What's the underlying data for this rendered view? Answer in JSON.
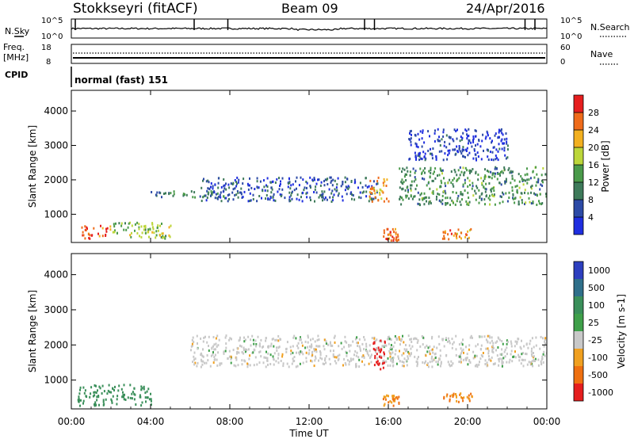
{
  "header": {
    "station": "Stokkseyri (fitACF)",
    "beam": "Beam 09",
    "date": "24/Apr/2016"
  },
  "noise_panel": {
    "left_label": "N.Sky",
    "right_label": "N.Search",
    "left_ticks": [
      "10^5",
      "10^0"
    ],
    "right_ticks": [
      "10^5",
      "10^0"
    ]
  },
  "freq_panel": {
    "left_label_line1": "Freq.",
    "left_label_line2": "[MHz]",
    "right_label": "Nave",
    "left_ticks": [
      "18",
      "8"
    ],
    "right_ticks": [
      "60",
      "0"
    ]
  },
  "cpid_panel": {
    "label": "CPID",
    "mode": "normal (fast) 151"
  },
  "colors": {
    "power": [
      "#1f2ee0",
      "#2c4aa6",
      "#3e7a5a",
      "#4a9a4a",
      "#bcd63a",
      "#f2b020",
      "#ef6b1a",
      "#e61e1e"
    ],
    "velocity": [
      "#2d3fbf",
      "#2f6f8a",
      "#3a8f5a",
      "#3fa04a",
      "#c8c8c8",
      "#f0a020",
      "#ef7010",
      "#e51e1e"
    ]
  },
  "chart_data": [
    {
      "type": "heatmap",
      "quantity": "Power",
      "xlabel": "",
      "ylabel": "Slant Range [km]",
      "x_ticks": [
        "00:00",
        "04:00",
        "08:00",
        "12:00",
        "16:00",
        "20:00",
        "00:00"
      ],
      "y_ticks": [
        "1000",
        "2000",
        "3000",
        "4000"
      ],
      "colorbar_label": "Power [dB]",
      "colorbar_ticks": [
        "4",
        "8",
        "12",
        "16",
        "20",
        "24",
        "28"
      ],
      "xlim_hours": [
        0,
        24
      ],
      "ylim_km": [
        180,
        4600
      ],
      "features": [
        {
          "name": "near-range echoes",
          "t": [
            0.5,
            2.0
          ],
          "range_km": [
            300,
            700
          ],
          "power_db": 28
        },
        {
          "name": "near-range echoes",
          "t": [
            2.0,
            5.0
          ],
          "range_km": [
            300,
            800
          ],
          "power_db": 18
        },
        {
          "name": "band",
          "t": [
            4.0,
            8.0
          ],
          "range_km": [
            1500,
            1700
          ],
          "power_db": 12
        },
        {
          "name": "band",
          "t": [
            6.5,
            15.5
          ],
          "range_km": [
            1400,
            2100
          ],
          "power_db": 8
        },
        {
          "name": "patch",
          "t": [
            15.0,
            16.0
          ],
          "range_km": [
            1400,
            2100
          ],
          "power_db": 24
        },
        {
          "name": "patch",
          "t": [
            15.7,
            16.5
          ],
          "range_km": [
            250,
            600
          ],
          "power_db": 28
        },
        {
          "name": "band",
          "t": [
            16.5,
            24.0
          ],
          "range_km": [
            1300,
            2400
          ],
          "power_db": 14
        },
        {
          "name": "patch",
          "t": [
            18.7,
            20.2
          ],
          "range_km": [
            300,
            600
          ],
          "power_db": 26
        },
        {
          "name": "arc",
          "t": [
            17.0,
            22.0
          ],
          "range_km": [
            2600,
            3500
          ],
          "power_db": 6
        }
      ]
    },
    {
      "type": "heatmap",
      "quantity": "Velocity",
      "xlabel": "Time UT",
      "ylabel": "Slant Range [km]",
      "x_ticks": [
        "00:00",
        "04:00",
        "08:00",
        "12:00",
        "16:00",
        "20:00",
        "00:00"
      ],
      "y_ticks": [
        "1000",
        "2000",
        "3000",
        "4000"
      ],
      "colorbar_label": "Velocity [m s-1]",
      "colorbar_ticks": [
        "1000",
        "500",
        "100",
        "25",
        "-25",
        "-100",
        "-500",
        "-1000"
      ],
      "xlim_hours": [
        0,
        24
      ],
      "ylim_km": [
        180,
        4600
      ],
      "features": [
        {
          "name": "near-range echoes",
          "t": [
            0.3,
            4.0
          ],
          "range_km": [
            300,
            900
          ],
          "velocity": 300
        },
        {
          "name": "ground scatter band",
          "t": [
            6.0,
            24.0
          ],
          "range_km": [
            1400,
            2300
          ],
          "velocity": 0
        },
        {
          "name": "patch",
          "t": [
            15.2,
            15.8
          ],
          "range_km": [
            1300,
            2200
          ],
          "velocity": -1000
        },
        {
          "name": "patch",
          "t": [
            15.7,
            16.5
          ],
          "range_km": [
            300,
            600
          ],
          "velocity": -100
        },
        {
          "name": "patch",
          "t": [
            18.7,
            20.2
          ],
          "range_km": [
            400,
            650
          ],
          "velocity": -100
        }
      ]
    }
  ]
}
